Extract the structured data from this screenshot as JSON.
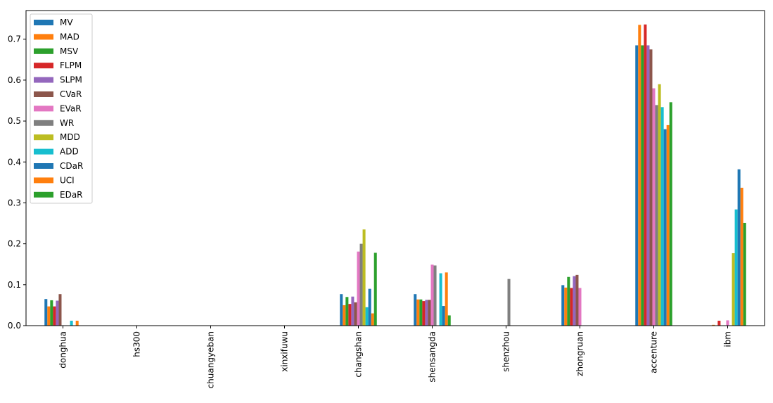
{
  "chart_data": {
    "type": "bar",
    "categories": [
      "donghua",
      "hs300",
      "chuangyeban",
      "xinxifuwu",
      "changshan",
      "shensangda",
      "shenzhou",
      "zhongruan",
      "accenture",
      "ibm"
    ],
    "series": [
      {
        "name": "MV",
        "color": "#1f77b4",
        "values": [
          0.065,
          0,
          0,
          0,
          0.077,
          0.077,
          0,
          0.099,
          0.685,
          0
        ]
      },
      {
        "name": "MAD",
        "color": "#ff7f0e",
        "values": [
          0.047,
          0,
          0,
          0,
          0.05,
          0.064,
          0,
          0.093,
          0.735,
          0.002
        ]
      },
      {
        "name": "MSV",
        "color": "#2ca02c",
        "values": [
          0.062,
          0,
          0,
          0,
          0.07,
          0.064,
          0,
          0.119,
          0.685,
          0
        ]
      },
      {
        "name": "FLPM",
        "color": "#d62728",
        "values": [
          0.047,
          0,
          0,
          0,
          0.053,
          0.06,
          0,
          0.092,
          0.736,
          0.012
        ]
      },
      {
        "name": "SLPM",
        "color": "#9467bd",
        "values": [
          0.061,
          0,
          0,
          0,
          0.071,
          0.063,
          0,
          0.121,
          0.685,
          0
        ]
      },
      {
        "name": "CVaR",
        "color": "#8c564b",
        "values": [
          0.077,
          0,
          0,
          0,
          0.057,
          0.063,
          0,
          0.124,
          0.675,
          0
        ]
      },
      {
        "name": "EVaR",
        "color": "#e377c2",
        "values": [
          0,
          0,
          0,
          0,
          0.181,
          0.149,
          0,
          0.092,
          0.58,
          0.013
        ]
      },
      {
        "name": "WR",
        "color": "#7f7f7f",
        "values": [
          0,
          0,
          0,
          0,
          0.2,
          0.147,
          0.114,
          0,
          0.539,
          0
        ]
      },
      {
        "name": "MDD",
        "color": "#bcbd22",
        "values": [
          0,
          0,
          0,
          0,
          0.235,
          0,
          0,
          0,
          0.59,
          0.177
        ]
      },
      {
        "name": "ADD",
        "color": "#17becf",
        "values": [
          0.012,
          0,
          0,
          0,
          0.045,
          0.128,
          0,
          0,
          0.534,
          0.284
        ]
      },
      {
        "name": "CDaR",
        "color": "#1f77b4",
        "values": [
          0,
          0,
          0,
          0,
          0.09,
          0.048,
          0,
          0,
          0.48,
          0.382
        ]
      },
      {
        "name": "UCI",
        "color": "#ff7f0e",
        "values": [
          0.012,
          0,
          0,
          0,
          0.03,
          0.13,
          0,
          0,
          0.49,
          0.337
        ]
      },
      {
        "name": "EDaR",
        "color": "#2ca02c",
        "values": [
          0,
          0,
          0,
          0,
          0.178,
          0.025,
          0,
          0,
          0.546,
          0.251
        ]
      }
    ],
    "y_ticks": [
      "0.0",
      "0.1",
      "0.2",
      "0.3",
      "0.4",
      "0.5",
      "0.6",
      "0.7"
    ],
    "ylim": [
      0,
      0.77
    ],
    "legend_placement": "upper-left",
    "grid": false
  }
}
